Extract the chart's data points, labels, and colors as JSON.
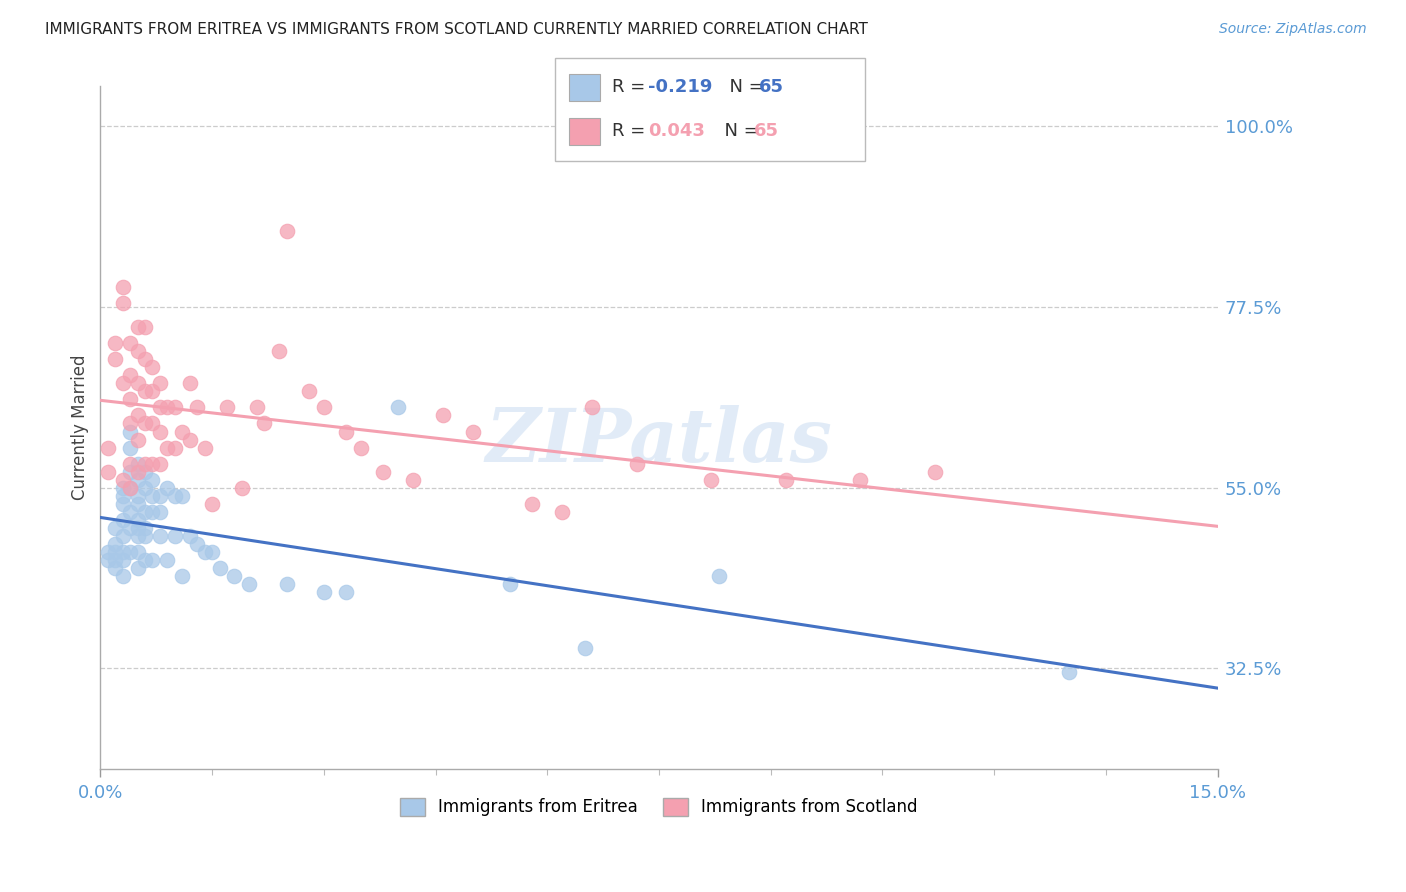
{
  "title": "IMMIGRANTS FROM ERITREA VS IMMIGRANTS FROM SCOTLAND CURRENTLY MARRIED CORRELATION CHART",
  "source": "Source: ZipAtlas.com",
  "ylabel": "Currently Married",
  "xlim": [
    0.0,
    0.15
  ],
  "ylim": [
    0.2,
    1.05
  ],
  "ytick_labels": [
    "32.5%",
    "55.0%",
    "77.5%",
    "100.0%"
  ],
  "ytick_values": [
    0.325,
    0.55,
    0.775,
    1.0
  ],
  "ytick_color": "#5b9bd5",
  "xtick_color": "#5b9bd5",
  "color_eritrea": "#a8c8e8",
  "color_scotland": "#f4a0b0",
  "trendline_eritrea_color": "#4472c4",
  "trendline_scotland_color": "#f4a0b0",
  "background_color": "#ffffff",
  "watermark": "ZIPatlas",
  "eritrea_x": [
    0.001,
    0.001,
    0.002,
    0.002,
    0.002,
    0.002,
    0.002,
    0.003,
    0.003,
    0.003,
    0.003,
    0.003,
    0.003,
    0.003,
    0.003,
    0.004,
    0.004,
    0.004,
    0.004,
    0.004,
    0.004,
    0.004,
    0.005,
    0.005,
    0.005,
    0.005,
    0.005,
    0.005,
    0.005,
    0.005,
    0.005,
    0.006,
    0.006,
    0.006,
    0.006,
    0.006,
    0.006,
    0.007,
    0.007,
    0.007,
    0.007,
    0.008,
    0.008,
    0.008,
    0.009,
    0.009,
    0.01,
    0.01,
    0.011,
    0.011,
    0.012,
    0.013,
    0.014,
    0.015,
    0.016,
    0.018,
    0.02,
    0.025,
    0.03,
    0.033,
    0.04,
    0.055,
    0.065,
    0.083,
    0.13
  ],
  "eritrea_y": [
    0.47,
    0.46,
    0.5,
    0.48,
    0.47,
    0.46,
    0.45,
    0.55,
    0.54,
    0.53,
    0.51,
    0.49,
    0.47,
    0.46,
    0.44,
    0.62,
    0.6,
    0.57,
    0.55,
    0.52,
    0.5,
    0.47,
    0.58,
    0.56,
    0.54,
    0.53,
    0.51,
    0.5,
    0.49,
    0.47,
    0.45,
    0.57,
    0.55,
    0.52,
    0.5,
    0.49,
    0.46,
    0.56,
    0.54,
    0.52,
    0.46,
    0.54,
    0.52,
    0.49,
    0.55,
    0.46,
    0.54,
    0.49,
    0.54,
    0.44,
    0.49,
    0.48,
    0.47,
    0.47,
    0.45,
    0.44,
    0.43,
    0.43,
    0.42,
    0.42,
    0.65,
    0.43,
    0.35,
    0.44,
    0.32
  ],
  "scotland_x": [
    0.001,
    0.001,
    0.002,
    0.002,
    0.003,
    0.003,
    0.003,
    0.003,
    0.004,
    0.004,
    0.004,
    0.004,
    0.004,
    0.004,
    0.005,
    0.005,
    0.005,
    0.005,
    0.005,
    0.005,
    0.006,
    0.006,
    0.006,
    0.006,
    0.006,
    0.007,
    0.007,
    0.007,
    0.007,
    0.008,
    0.008,
    0.008,
    0.008,
    0.009,
    0.009,
    0.01,
    0.01,
    0.011,
    0.012,
    0.012,
    0.013,
    0.014,
    0.015,
    0.017,
    0.019,
    0.021,
    0.022,
    0.024,
    0.025,
    0.028,
    0.03,
    0.033,
    0.035,
    0.038,
    0.042,
    0.046,
    0.05,
    0.058,
    0.062,
    0.066,
    0.072,
    0.082,
    0.092,
    0.102,
    0.112
  ],
  "scotland_y": [
    0.6,
    0.57,
    0.73,
    0.71,
    0.8,
    0.78,
    0.68,
    0.56,
    0.73,
    0.69,
    0.66,
    0.63,
    0.58,
    0.55,
    0.75,
    0.72,
    0.68,
    0.64,
    0.61,
    0.57,
    0.75,
    0.71,
    0.67,
    0.63,
    0.58,
    0.7,
    0.67,
    0.63,
    0.58,
    0.68,
    0.65,
    0.62,
    0.58,
    0.65,
    0.6,
    0.65,
    0.6,
    0.62,
    0.68,
    0.61,
    0.65,
    0.6,
    0.53,
    0.65,
    0.55,
    0.65,
    0.63,
    0.72,
    0.87,
    0.67,
    0.65,
    0.62,
    0.6,
    0.57,
    0.56,
    0.64,
    0.62,
    0.53,
    0.52,
    0.65,
    0.58,
    0.56,
    0.56,
    0.56,
    0.57
  ]
}
